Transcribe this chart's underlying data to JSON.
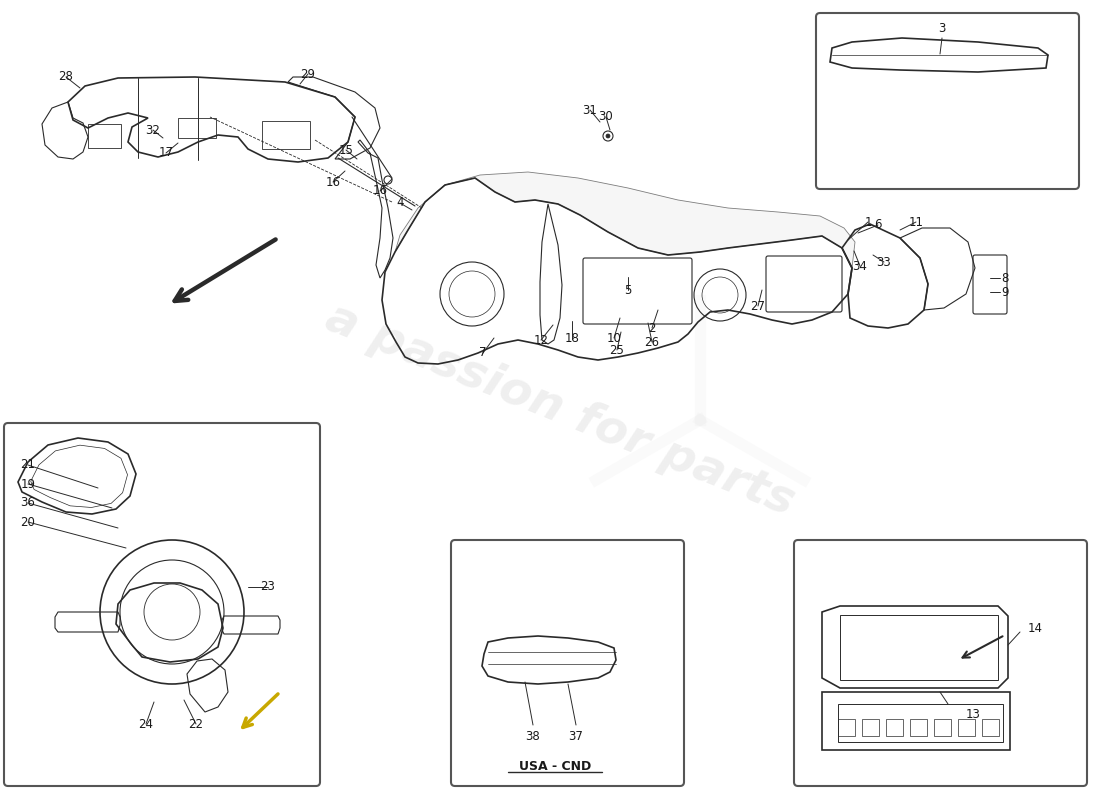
{
  "background_color": "#ffffff",
  "line_color": "#2a2a2a",
  "text_color": "#1a1a1a",
  "label_fontsize": 8.5,
  "usa_cnd_label": "USA - CND",
  "watermark_text": "a passion for parts",
  "watermark_color": "#c8c8c8",
  "watermark_alpha": 0.28
}
